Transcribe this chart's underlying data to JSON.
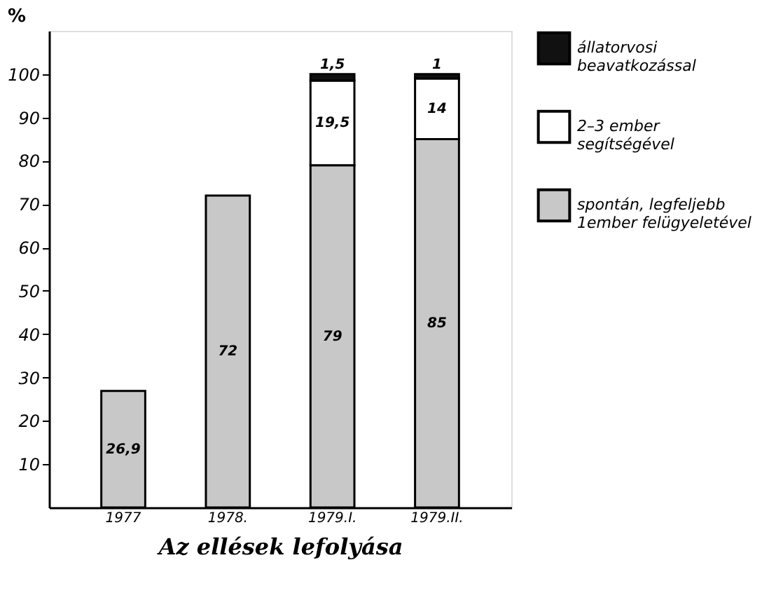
{
  "chart_data": {
    "type": "bar",
    "stacked": true,
    "xlabel": "Az ellések lefolyása",
    "ylabel": "%",
    "categories": [
      "1977",
      "1978.",
      "1979.I.",
      "1979.II."
    ],
    "series": [
      {
        "name": "spontán, legfeljebb\n1ember felügyeletével",
        "color": "#c8c8c8",
        "values": [
          26.9,
          72,
          79,
          85
        ],
        "value_labels": [
          "26,9",
          "72",
          "79",
          "85"
        ]
      },
      {
        "name": "2–3 ember\nsegítségével",
        "color": "#ffffff",
        "values": [
          null,
          null,
          19.5,
          14
        ],
        "value_labels": [
          null,
          null,
          "19,5",
          "14"
        ]
      },
      {
        "name": "állatorvosi\nbeavatkozással",
        "color": "#111111",
        "values": [
          null,
          null,
          1.5,
          1
        ],
        "value_labels": [
          null,
          null,
          "1,5",
          "1"
        ]
      }
    ],
    "ylim": [
      0,
      110
    ],
    "yticks": [
      10,
      20,
      30,
      40,
      50,
      60,
      70,
      80,
      90,
      100
    ],
    "grid": false,
    "legend": "top right"
  }
}
